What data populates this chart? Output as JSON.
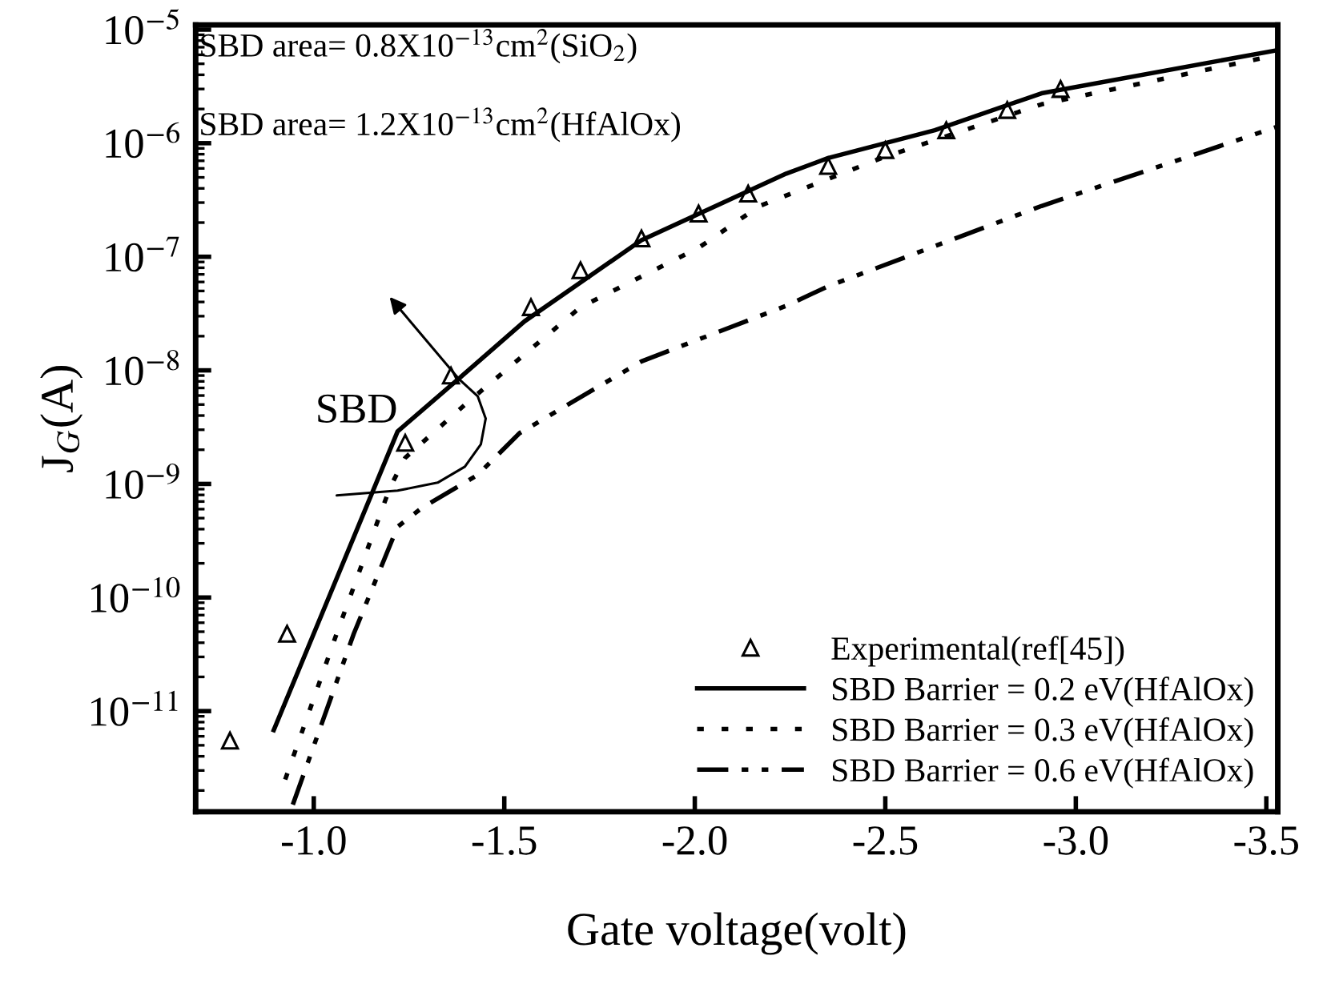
{
  "chart_data": {
    "type": "line",
    "xlabel": "Gate voltage(volt)",
    "ylabel": "J$_{G}$(A)",
    "log": "y",
    "xlim": [
      -0.69,
      -3.53
    ],
    "ylim": [
      1.3e-12,
      1.1e-05
    ],
    "xticks": [
      {
        "value": -1.0,
        "label": "-1.0"
      },
      {
        "value": -1.5,
        "label": "-1.5"
      },
      {
        "value": -2.0,
        "label": "-2.0"
      },
      {
        "value": -2.5,
        "label": "-2.5"
      },
      {
        "value": -3.0,
        "label": "-3.0"
      },
      {
        "value": -3.5,
        "label": "-3.5"
      }
    ],
    "yticks": [
      {
        "value": 1e-11,
        "label": "10$^{−11}$"
      },
      {
        "value": 1e-10,
        "label": "10$^{−10}$"
      },
      {
        "value": 1e-09,
        "label": "10$^{−9}$"
      },
      {
        "value": 1e-08,
        "label": "10$^{−8}$"
      },
      {
        "value": 1e-07,
        "label": "10$^{−7}$"
      },
      {
        "value": 1e-06,
        "label": "10$^{−6}$"
      },
      {
        "value": 1e-05,
        "label": "10$^{−5}$"
      }
    ],
    "grid": false,
    "legend": "bottom right",
    "series": [
      {
        "name": "Experimental(ref[45])",
        "type": "scatter",
        "marker": "triangle",
        "color": "#000000",
        "x": [
          -0.78,
          -0.93,
          -1.24,
          -1.36,
          -1.57,
          -1.7,
          -1.86,
          -2.01,
          -2.14,
          -2.35,
          -2.5,
          -2.66,
          -2.82,
          -2.96
        ],
        "values": [
          5.5e-12,
          4.8e-11,
          2.3e-09,
          9e-09,
          3.6e-08,
          7.6e-08,
          1.45e-07,
          2.4e-07,
          3.6e-07,
          6.3e-07,
          8.7e-07,
          1.3e-06,
          1.96e-06,
          3e-06
        ]
      },
      {
        "name": "SBD Barrier = 0.2 eV(HfAlOx)",
        "type": "line",
        "line_style": "solid",
        "color": "#000000",
        "x": [
          -0.895,
          -1.22,
          -1.385,
          -1.553,
          -1.86,
          -2.24,
          -2.35,
          -2.63,
          -2.91,
          -3.53
        ],
        "values": [
          6.8e-12,
          2.9e-09,
          8.7e-09,
          2.7e-08,
          1.4e-07,
          5.4e-07,
          7.4e-07,
          1.3e-06,
          2.75e-06,
          6.6e-06
        ]
      },
      {
        "name": "SBD Barrier = 0.3 eV(HfAlOx)",
        "type": "line",
        "line_style": "dotted",
        "color": "#000000",
        "x": [
          -0.925,
          -1.06,
          -1.2,
          -1.24,
          -1.4,
          -1.7,
          -2.01,
          -2.17,
          -2.49,
          -2.91,
          -3.51
        ],
        "values": [
          2.5e-12,
          4.8e-11,
          9.3e-10,
          1.7e-09,
          5.1e-09,
          3.6e-08,
          1.2e-07,
          2.8e-07,
          7.4e-07,
          2.2e-06,
          5.8e-06
        ]
      },
      {
        "name": "SBD Barrier = 0.6 eV(HfAlOx)",
        "type": "line",
        "line_style": "dashdot",
        "color": "#000000",
        "x": [
          -0.945,
          -1.105,
          -1.22,
          -1.285,
          -1.43,
          -1.54,
          -1.86,
          -2.24,
          -2.35,
          -2.91,
          -3.53
        ],
        "values": [
          1.5e-12,
          4.8e-11,
          4.2e-10,
          6.2e-10,
          1.2e-09,
          2.8e-09,
          1.2e-08,
          3.7e-08,
          5.5e-08,
          2.8e-07,
          1.4e-06
        ]
      }
    ],
    "annotations": [
      "SBD area= 0.8X10$^{−13}$cm$^{2}$(SiO$_{2}$)",
      "SBD area= 1.2X10$^{−13}$cm$^{2}$(HfAlOx)",
      {
        "text": "SBD",
        "x": -1.22,
        "y": 2.9e-09
      }
    ]
  }
}
